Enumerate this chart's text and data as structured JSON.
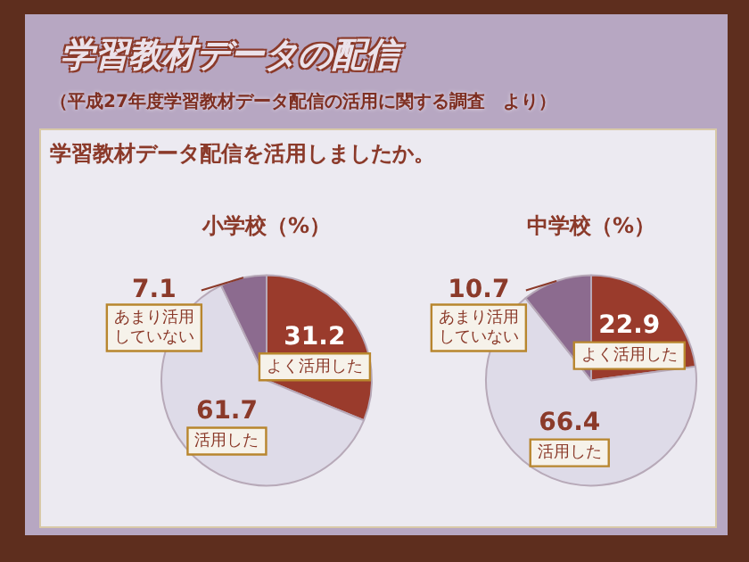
{
  "chart_data": [
    {
      "type": "other",
      "title": "学習教材データの配信",
      "subtitle": "（平成27年度学習教材データ配信の活用に関する調査　より）",
      "annotations": [
        "学習教材データ配信を活用しましたか。"
      ]
    },
    {
      "type": "pie",
      "title": "小学校（%）",
      "categories": [
        "よく活用した",
        "活用した",
        "あまり活用していない"
      ],
      "values": [
        31.2,
        61.7,
        7.1
      ],
      "colors": [
        "#9a3b2c",
        "#dedbe8",
        "#8c6b8f"
      ],
      "data_labels": true
    },
    {
      "type": "pie",
      "title": "中学校（%）",
      "categories": [
        "よく活用した",
        "活用した",
        "あまり活用していない"
      ],
      "values": [
        22.9,
        66.4,
        10.7
      ],
      "colors": [
        "#9a3b2c",
        "#dedbe8",
        "#8c6b8f"
      ],
      "data_labels": true
    }
  ]
}
